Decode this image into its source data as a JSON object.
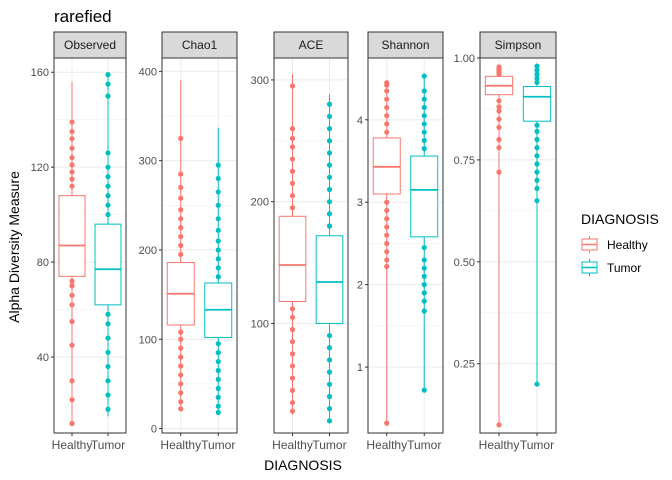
{
  "chart_data": {
    "type": "boxplot",
    "title": "rarefied",
    "xlabel": "DIAGNOSIS",
    "ylabel": "Alpha Diversity Measure",
    "categories": [
      "Healthy",
      "Tumor"
    ],
    "legend": {
      "title": "DIAGNOSIS",
      "placement": "right",
      "entries": [
        {
          "label": "Healthy",
          "color": "#F8766D"
        },
        {
          "label": "Tumor",
          "color": "#00BFC4"
        }
      ]
    },
    "grid": true,
    "facets": [
      {
        "name": "Observed",
        "ylim": [
          8,
          166
        ],
        "yticks": [
          40,
          80,
          120,
          160
        ],
        "groups": [
          {
            "name": "Healthy",
            "whisker_low": 12,
            "q1": 74,
            "median": 87,
            "q3": 108,
            "whisker_high": 156,
            "outliers": [
              12,
              22,
              30,
              45,
              55,
              62,
              66,
              70,
              72,
              112,
              115,
              118,
              121,
              124,
              128,
              132,
              135,
              139
            ]
          },
          {
            "name": "Tumor",
            "whisker_low": 15,
            "q1": 62,
            "median": 77,
            "q3": 96,
            "whisker_high": 158,
            "outliers": [
              18,
              24,
              30,
              36,
              42,
              48,
              54,
              58,
              100,
              104,
              108,
              112,
              116,
              120,
              126,
              150,
              155,
              159
            ]
          }
        ]
      },
      {
        "name": "Chao1",
        "ylim": [
          -5,
          415
        ],
        "yticks": [
          0,
          100,
          200,
          300,
          400
        ],
        "groups": [
          {
            "name": "Healthy",
            "whisker_low": 22,
            "q1": 116,
            "median": 151,
            "q3": 186,
            "whisker_high": 390,
            "outliers": [
              22,
              30,
              40,
              50,
              60,
              70,
              80,
              90,
              100,
              108,
              195,
              205,
              215,
              225,
              235,
              245,
              258,
              270,
              285,
              325
            ]
          },
          {
            "name": "Tumor",
            "whisker_low": 18,
            "q1": 102,
            "median": 133,
            "q3": 163,
            "whisker_high": 337,
            "outliers": [
              18,
              25,
              35,
              45,
              55,
              65,
              75,
              85,
              95,
              170,
              180,
              190,
              200,
              210,
              222,
              235,
              250,
              265,
              280,
              295
            ]
          }
        ]
      },
      {
        "name": "ACE",
        "ylim": [
          10,
          318
        ],
        "yticks": [
          100,
          200,
          300
        ],
        "groups": [
          {
            "name": "Healthy",
            "whisker_low": 25,
            "q1": 118,
            "median": 148,
            "q3": 188,
            "whisker_high": 305,
            "outliers": [
              28,
              35,
              45,
              55,
              65,
              75,
              85,
              95,
              105,
              112,
              195,
              205,
              215,
              225,
              235,
              245,
              252,
              260,
              295
            ]
          },
          {
            "name": "Tumor",
            "whisker_low": 18,
            "q1": 100,
            "median": 134,
            "q3": 172,
            "whisker_high": 288,
            "outliers": [
              20,
              30,
              40,
              50,
              60,
              70,
              80,
              90,
              180,
              190,
              200,
              210,
              220,
              230,
              240,
              250,
              260,
              270,
              280
            ]
          }
        ]
      },
      {
        "name": "Shannon",
        "ylim": [
          0.2,
          4.75
        ],
        "yticks": [
          1,
          2,
          3,
          4
        ],
        "groups": [
          {
            "name": "Healthy",
            "whisker_low": 0.32,
            "q1": 3.1,
            "median": 3.43,
            "q3": 3.78,
            "whisker_high": 4.45,
            "outliers": [
              0.32,
              2.22,
              2.3,
              2.4,
              2.5,
              2.6,
              2.7,
              2.8,
              2.9,
              3.0,
              3.85,
              3.95,
              4.05,
              4.15,
              4.25,
              4.35,
              4.42,
              4.45
            ]
          },
          {
            "name": "Tumor",
            "whisker_low": 0.72,
            "q1": 2.58,
            "median": 3.15,
            "q3": 3.56,
            "whisker_high": 4.53,
            "outliers": [
              0.72,
              1.68,
              1.8,
              1.9,
              2.0,
              2.1,
              2.2,
              2.3,
              2.45,
              3.65,
              3.75,
              3.85,
              3.95,
              4.05,
              4.15,
              4.25,
              4.35,
              4.53
            ]
          }
        ]
      },
      {
        "name": "Simpson",
        "ylim": [
          0.08,
          1.0
        ],
        "yticks": [
          0.25,
          0.5,
          0.75,
          1.0
        ],
        "ytick_labels": [
          "0.25",
          "0.50",
          "0.75",
          "1.00"
        ],
        "groups": [
          {
            "name": "Healthy",
            "whisker_low": 0.1,
            "q1": 0.91,
            "median": 0.932,
            "q3": 0.955,
            "whisker_high": 0.978,
            "outliers": [
              0.1,
              0.72,
              0.78,
              0.8,
              0.83,
              0.85,
              0.87,
              0.88,
              0.895,
              0.96,
              0.965,
              0.97,
              0.975,
              0.978
            ]
          },
          {
            "name": "Tumor",
            "whisker_low": 0.2,
            "q1": 0.845,
            "median": 0.905,
            "q3": 0.93,
            "whisker_high": 0.98,
            "outliers": [
              0.2,
              0.65,
              0.68,
              0.7,
              0.72,
              0.74,
              0.76,
              0.78,
              0.8,
              0.82,
              0.835,
              0.94,
              0.95,
              0.96,
              0.97,
              0.98
            ]
          }
        ]
      }
    ]
  }
}
